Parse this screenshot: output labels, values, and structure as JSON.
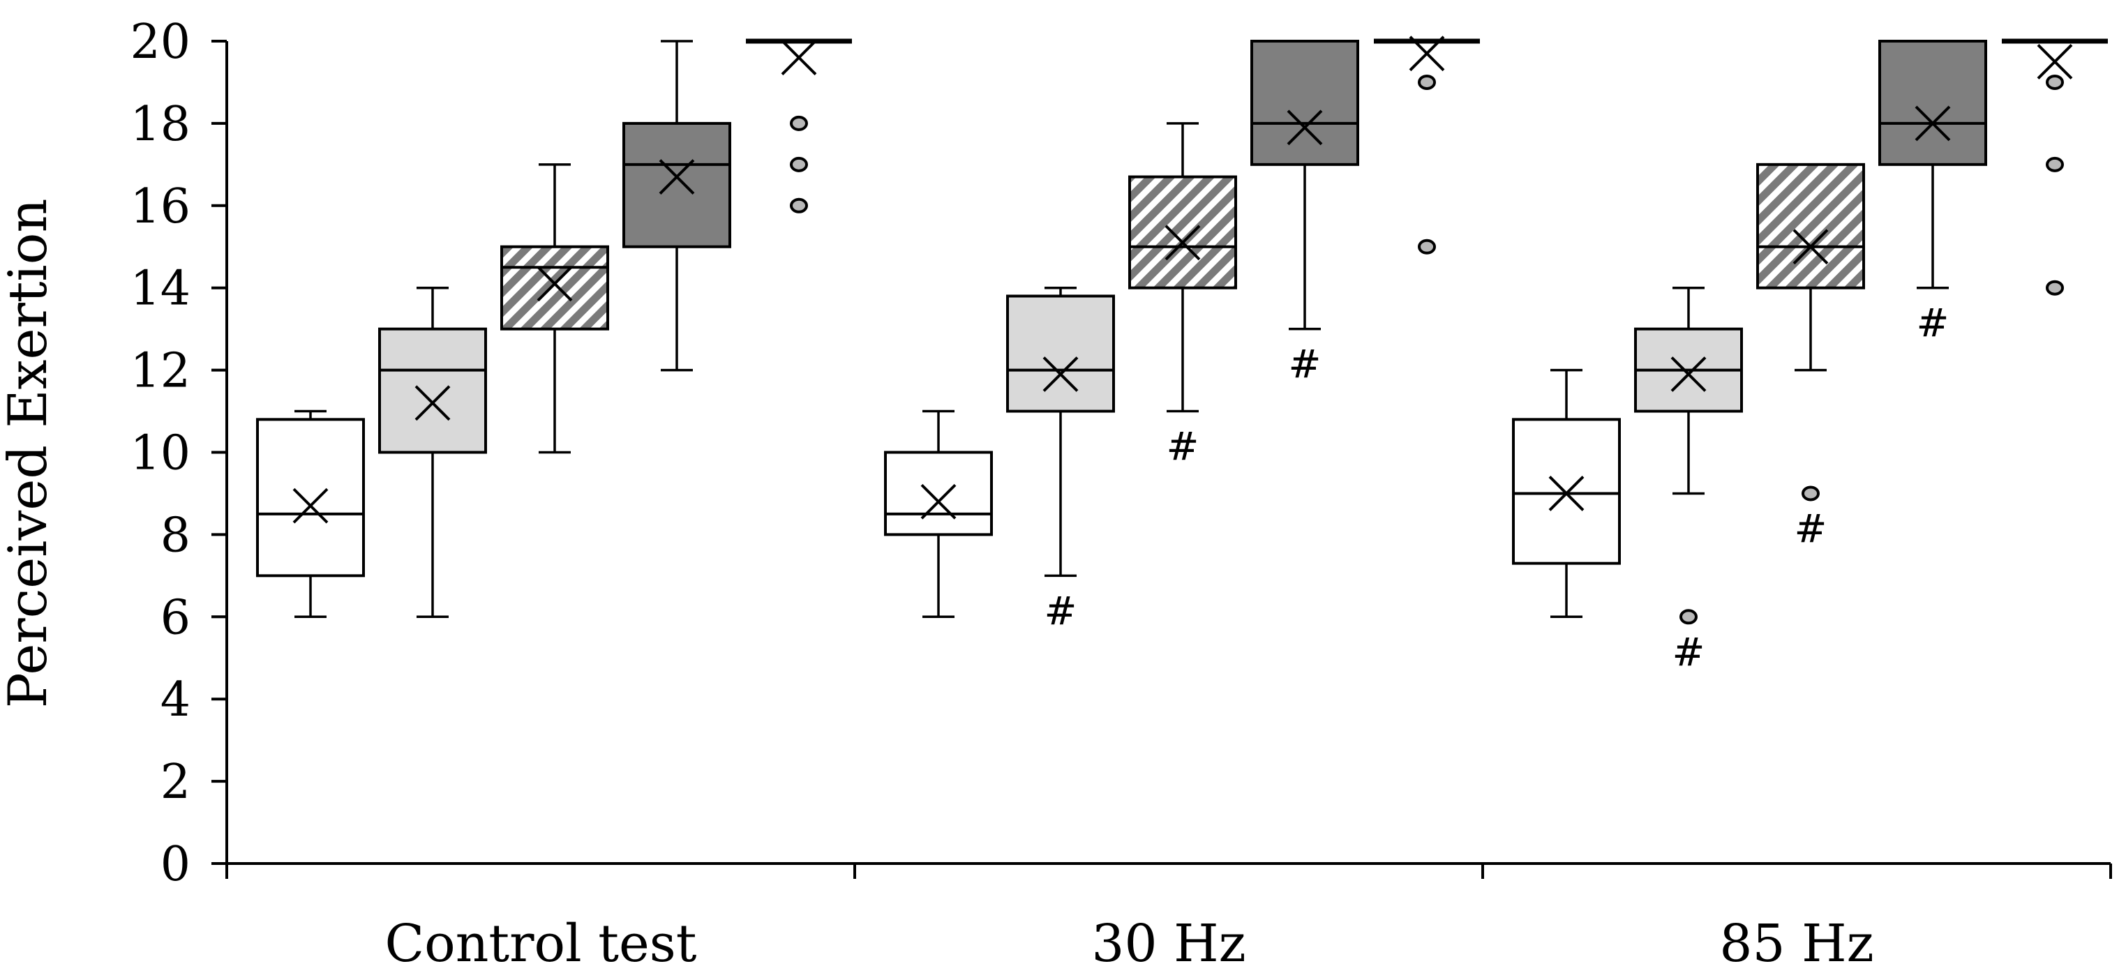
{
  "chart_data": {
    "type": "box",
    "title": "",
    "xlabel": "",
    "ylabel": "Perceived Exertion",
    "ylim": [
      0,
      20
    ],
    "yticks": [
      0,
      2,
      4,
      6,
      8,
      10,
      12,
      14,
      16,
      18,
      20
    ],
    "grid": false,
    "categories": [
      "Control test",
      "30 Hz",
      "85 Hz"
    ],
    "significance_marker": "#",
    "series_styles": [
      {
        "fill": "#ffffff",
        "pattern": "none"
      },
      {
        "fill": "#d9d9d9",
        "pattern": "none"
      },
      {
        "fill": "#ffffff",
        "pattern": "diagonal-hatch"
      },
      {
        "fill": "#7f7f7f",
        "pattern": "none"
      },
      {
        "fill": "#ffffff",
        "pattern": "none"
      }
    ],
    "groups": [
      {
        "category": "Control test",
        "boxes": [
          {
            "min": 6,
            "q1": 7,
            "median": 8.5,
            "q3": 10.8,
            "max": 11,
            "mean": 8.7,
            "outliers": [],
            "sig": false
          },
          {
            "min": 6,
            "q1": 10,
            "median": 12,
            "q3": 13,
            "max": 14,
            "mean": 11.2,
            "outliers": [],
            "sig": false
          },
          {
            "min": 10,
            "q1": 13,
            "median": 14.5,
            "q3": 15,
            "max": 17,
            "mean": 14.1,
            "outliers": [],
            "sig": false
          },
          {
            "min": 12,
            "q1": 15,
            "median": 17,
            "q3": 18,
            "max": 20,
            "mean": 16.7,
            "outliers": [],
            "sig": false
          },
          {
            "min": 20,
            "q1": 20,
            "median": 20,
            "q3": 20,
            "max": 20,
            "mean": 19.6,
            "outliers": [
              18,
              17,
              16
            ],
            "sig": false
          }
        ]
      },
      {
        "category": "30 Hz",
        "boxes": [
          {
            "min": 6,
            "q1": 8,
            "median": 8.5,
            "q3": 10,
            "max": 11,
            "mean": 8.8,
            "outliers": [],
            "sig": false
          },
          {
            "min": 7,
            "q1": 11,
            "median": 12,
            "q3": 13.8,
            "max": 14,
            "mean": 11.9,
            "outliers": [],
            "sig": true
          },
          {
            "min": 11,
            "q1": 14,
            "median": 15,
            "q3": 16.7,
            "max": 18,
            "mean": 15.1,
            "outliers": [],
            "sig": true
          },
          {
            "min": 13,
            "q1": 17,
            "median": 18,
            "q3": 20,
            "max": 20,
            "mean": 17.9,
            "outliers": [],
            "sig": true
          },
          {
            "min": 20,
            "q1": 20,
            "median": 20,
            "q3": 20,
            "max": 20,
            "mean": 19.7,
            "outliers": [
              19,
              15
            ],
            "sig": false
          }
        ]
      },
      {
        "category": "85 Hz",
        "boxes": [
          {
            "min": 6,
            "q1": 7.3,
            "median": 9,
            "q3": 10.8,
            "max": 12,
            "mean": 9,
            "outliers": [],
            "sig": false
          },
          {
            "min": 9,
            "q1": 11,
            "median": 12,
            "q3": 13,
            "max": 14,
            "mean": 11.9,
            "outliers": [
              6
            ],
            "sig": true
          },
          {
            "min": 12,
            "q1": 14,
            "median": 15,
            "q3": 17,
            "max": 17,
            "mean": 15,
            "outliers": [
              9
            ],
            "sig": true
          },
          {
            "min": 14,
            "q1": 17,
            "median": 18,
            "q3": 20,
            "max": 20,
            "mean": 18,
            "outliers": [],
            "sig": true
          },
          {
            "min": 20,
            "q1": 20,
            "median": 20,
            "q3": 20,
            "max": 20,
            "mean": 19.5,
            "outliers": [
              19,
              17,
              14
            ],
            "sig": false
          }
        ]
      }
    ]
  }
}
